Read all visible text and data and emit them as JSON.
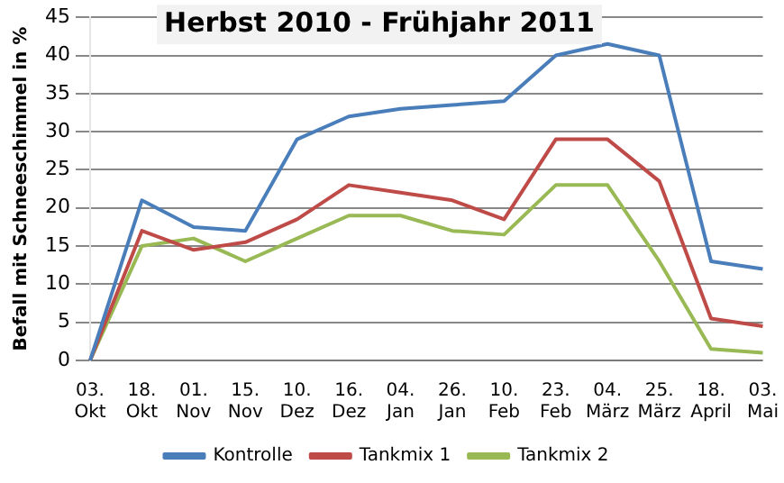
{
  "chart_data": {
    "type": "line",
    "title": "Herbst 2010 - Frühjahr 2011",
    "ylabel": "Befall mit Schneeschimmel in %",
    "categories": [
      "03. Okt",
      "18. Okt",
      "01. Nov",
      "15. Nov",
      "10. Dez",
      "16. Dez",
      "04. Jan",
      "26. Jan",
      "10. Feb",
      "23. Feb",
      "04. März",
      "25. März",
      "18. April",
      "03. Mai"
    ],
    "series": [
      {
        "name": "Kontrolle",
        "color": "#4a7ebb",
        "values": [
          0,
          21,
          17.5,
          17,
          29,
          32,
          33,
          33.5,
          34,
          40,
          41.5,
          40,
          13,
          12
        ]
      },
      {
        "name": "Tankmix 1",
        "color": "#be4b48",
        "values": [
          0,
          17,
          14.5,
          15.5,
          18.5,
          23,
          22,
          21,
          18.5,
          29,
          29,
          23.5,
          5.5,
          4.5
        ]
      },
      {
        "name": "Tankmix 2",
        "color": "#98b954",
        "values": [
          0,
          15,
          16,
          13,
          16,
          19,
          19,
          17,
          16.5,
          23,
          23,
          13,
          1.5,
          1
        ]
      }
    ],
    "ylim": [
      0,
      45
    ],
    "yticks": [
      0,
      5,
      10,
      15,
      20,
      25,
      30,
      35,
      40,
      45
    ],
    "grid": "y",
    "legend": "bottom",
    "marker": "none",
    "line_style": "solid"
  }
}
